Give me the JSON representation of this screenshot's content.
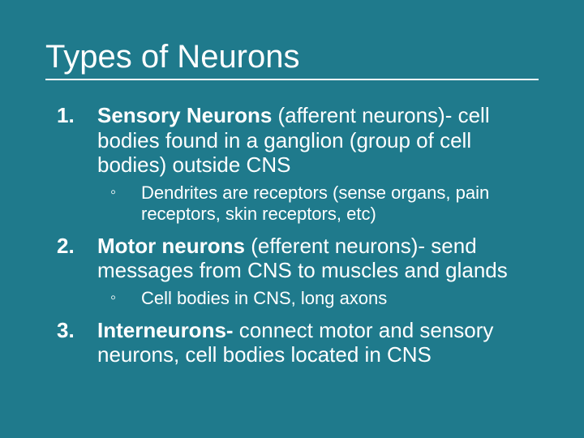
{
  "background_color": "#1f7a8c",
  "text_color": "#ffffff",
  "title": "Types of Neurons",
  "title_fontsize": 40,
  "body_fontsize": 26,
  "sub_fontsize": 22,
  "underline_color": "#ffffff",
  "items": [
    {
      "bold_lead": "Sensory Neurons",
      "rest": " (afferent neurons)- cell bodies found in a ganglion (group of cell bodies) outside CNS",
      "sub": [
        "Dendrites are receptors (sense organs, pain receptors, skin receptors, etc)"
      ]
    },
    {
      "bold_lead": "Motor neurons",
      "rest": " (efferent neurons)- send messages from CNS to muscles and glands",
      "sub": [
        "Cell bodies in CNS, long axons"
      ]
    },
    {
      "bold_lead": "Interneurons-",
      "rest": " connect motor and sensory neurons, cell bodies located in CNS",
      "sub": []
    }
  ]
}
